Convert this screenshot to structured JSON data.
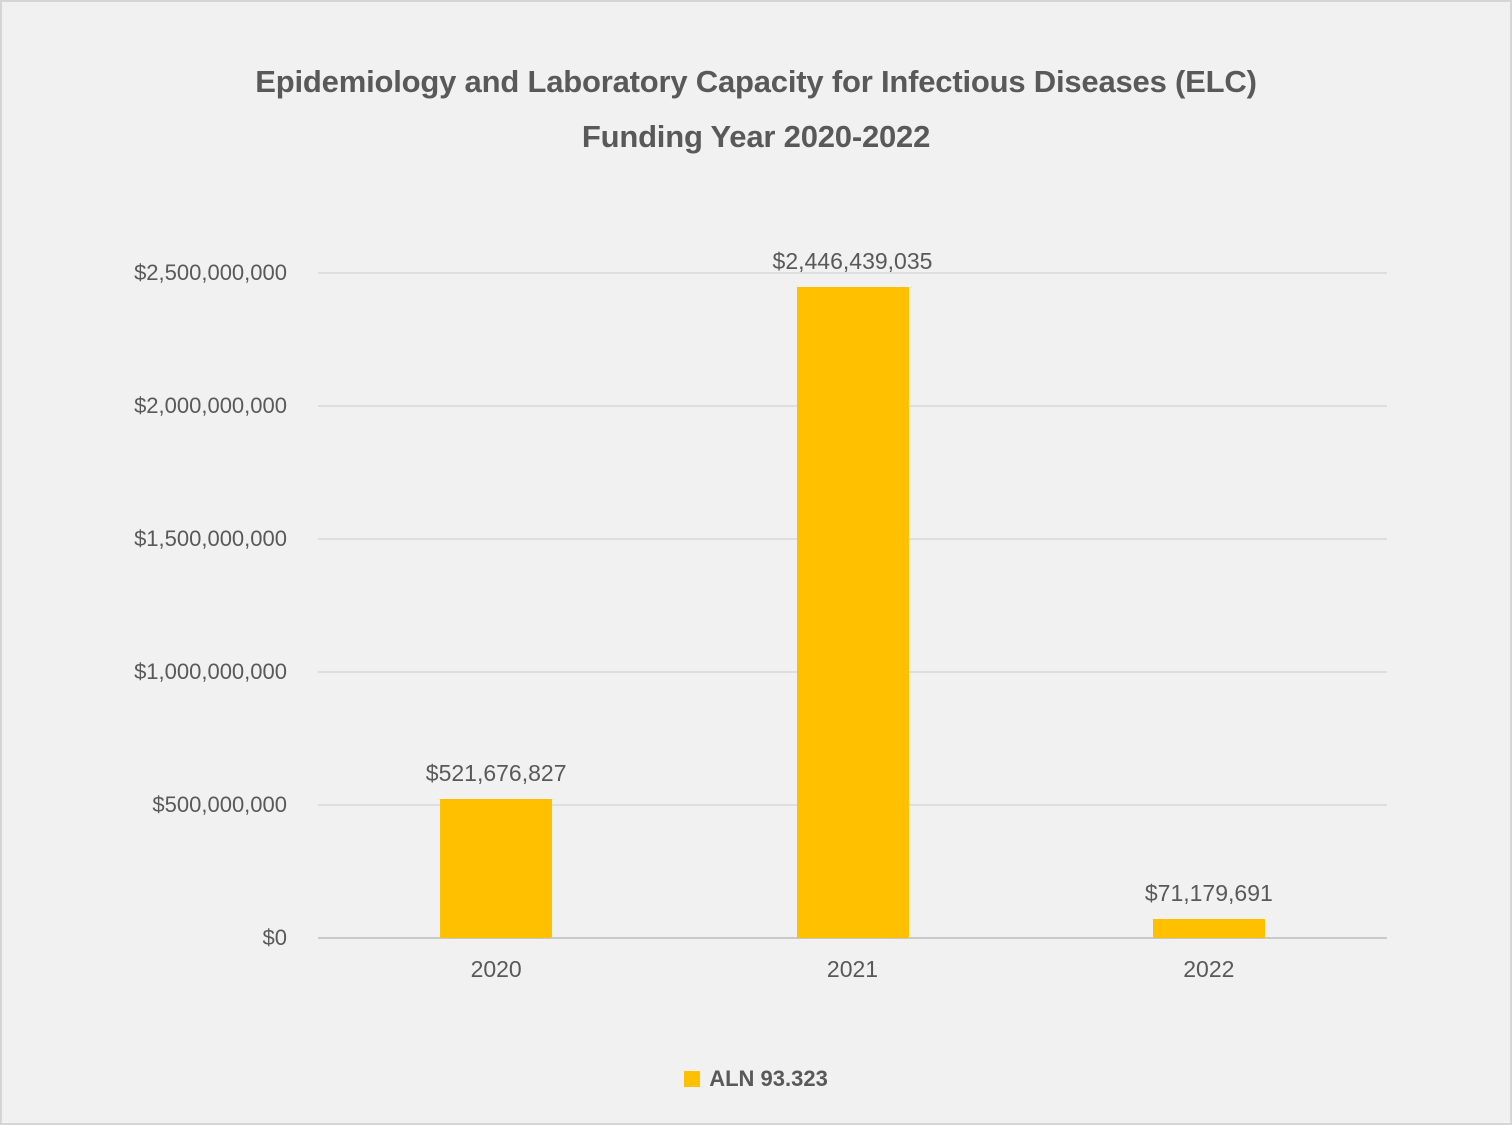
{
  "chart_data": {
    "type": "bar",
    "title": "Epidemiology and Laboratory Capacity for Infectious Diseases (ELC) Funding Year 2020-2022",
    "title_lines": [
      "Epidemiology and Laboratory Capacity for Infectious Diseases (ELC)",
      "Funding Year 2020-2022"
    ],
    "categories": [
      "2020",
      "2021",
      "2022"
    ],
    "series": [
      {
        "name": "ALN 93.323",
        "values": [
          521676827,
          2446439035,
          71179691
        ],
        "color": "#FFC000"
      }
    ],
    "data_labels": [
      "$521,676,827",
      "$2,446,439,035",
      "$71,179,691"
    ],
    "xlabel": "",
    "ylabel": "",
    "y_axis": {
      "min": 0,
      "max": 2500000000,
      "tick_interval": 500000000,
      "tick_values": [
        0,
        500000000,
        1000000000,
        1500000000,
        2000000000,
        2500000000
      ],
      "tick_labels": [
        "$0",
        "$500,000,000",
        "$1,000,000,000",
        "$1,500,000,000",
        "$2,000,000,000",
        "$2,500,000,000"
      ]
    },
    "grid": true,
    "legend": {
      "position": "bottom",
      "entries": [
        {
          "label": "ALN 93.323",
          "color": "#FFC000"
        }
      ]
    },
    "colors": {
      "bar": "#FFC000",
      "text": "#595959",
      "gridline": "#DEDEDE",
      "axis_line": "#C9C9C9",
      "background": "#F1F1F1",
      "border": "#D5D5D5"
    }
  }
}
